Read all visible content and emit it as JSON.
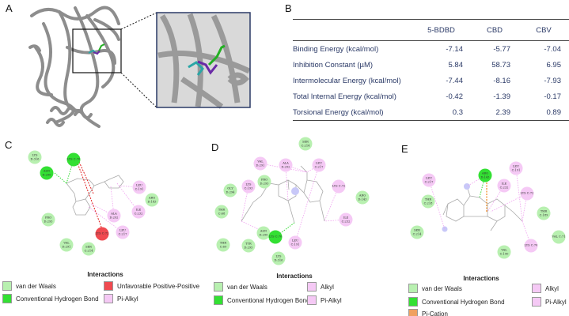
{
  "panel_labels": {
    "a": "A",
    "b": "B",
    "c": "C",
    "d": "D",
    "e": "E"
  },
  "colors": {
    "vdw": "#b8f0b0",
    "hbond": "#33e033",
    "unfavorable": "#f04a50",
    "pi_alkyl": "#f5c9f5",
    "alkyl": "#f5c9f5",
    "pi_cation": "#f0a060",
    "table_text": "#2b3a67",
    "inset_border": "#2b3a67"
  },
  "table": {
    "headers": [
      "",
      "5-BDBD",
      "CBD",
      "CBV"
    ],
    "rows": [
      {
        "label": "Binding Energy (kcal/mol)",
        "values": [
          "-7.14",
          "-5.77",
          "-7.04"
        ]
      },
      {
        "label": "Inhibition Constant (µM)",
        "values": [
          "5.84",
          "58.73",
          "6.95"
        ]
      },
      {
        "label": "Intermolecular Energy (kcal/mol)",
        "values": [
          "-7.44",
          "-8.16",
          "-7.93"
        ]
      },
      {
        "label": "Total Internal Energy (kcal/mol)",
        "values": [
          "-0.42",
          "-1.39",
          "-0.17"
        ]
      },
      {
        "label": "Torsional Energy (kcal/mol)",
        "values": [
          "0.3",
          "2.39",
          "0.89"
        ]
      }
    ]
  },
  "panel_c": {
    "residues": [
      {
        "name": "LYS D:316",
        "type": "vdw"
      },
      {
        "name": "LYS C:70",
        "type": "hbond"
      },
      {
        "name": "ASN D:290",
        "type": "hbond"
      },
      {
        "name": "LEU C:191",
        "type": "pi_alkyl"
      },
      {
        "name": "ARG D:143",
        "type": "vdw"
      },
      {
        "name": "ILE C:232",
        "type": "pi_alkyl"
      },
      {
        "name": "ALA D:292",
        "type": "pi_alkyl"
      },
      {
        "name": "PRO D:293",
        "type": "vdw"
      },
      {
        "name": "LYS C:72",
        "type": "unfavorable"
      },
      {
        "name": "LEU C:217",
        "type": "pi_alkyl"
      },
      {
        "name": "VAL D:291",
        "type": "vdw"
      },
      {
        "name": "SER C:214",
        "type": "vdw"
      }
    ],
    "legend": {
      "title": "Interactions",
      "items": [
        {
          "label": "van der Waals",
          "type": "vdw"
        },
        {
          "label": "Conventional Hydrogen Bond",
          "type": "hbond"
        },
        {
          "label": "Unfavorable Positive-Positive",
          "type": "unfavorable"
        },
        {
          "label": "Pi-Alkyl",
          "type": "pi_alkyl"
        }
      ]
    }
  },
  "panel_d": {
    "residues": [
      {
        "name": "SER C:214",
        "type": "vdw"
      },
      {
        "name": "VAL D:291",
        "type": "pi_alkyl"
      },
      {
        "name": "ALA D:292",
        "type": "pi_alkyl"
      },
      {
        "name": "LEU C:217",
        "type": "pi_alkyl"
      },
      {
        "name": "PRO D:293",
        "type": "vdw"
      },
      {
        "name": "LYS C:193",
        "type": "pi_alkyl"
      },
      {
        "name": "GLY D:294",
        "type": "vdw"
      },
      {
        "name": "LYS C:72",
        "type": "pi_alkyl"
      },
      {
        "name": "ARG D:143",
        "type": "vdw"
      },
      {
        "name": "THR C:68",
        "type": "vdw"
      },
      {
        "name": "ILE C:232",
        "type": "pi_alkyl"
      },
      {
        "name": "ASN D:290",
        "type": "vdw"
      },
      {
        "name": "LYS C:70",
        "type": "hbond"
      },
      {
        "name": "LEU C:191",
        "type": "pi_alkyl"
      },
      {
        "name": "THR C:69",
        "type": "vdw"
      },
      {
        "name": "TYR D:295",
        "type": "vdw"
      },
      {
        "name": "LYS D:316",
        "type": "vdw"
      }
    ],
    "legend": {
      "title": "Interactions",
      "items": [
        {
          "label": "van der Waals",
          "type": "vdw"
        },
        {
          "label": "Conventional Hydrogen Bond",
          "type": "hbond"
        },
        {
          "label": "Alkyl",
          "type": "alkyl"
        },
        {
          "label": "Pi-Alkyl",
          "type": "pi_alkyl"
        }
      ]
    }
  },
  "panel_e": {
    "residues": [
      {
        "name": "LEU C:217",
        "type": "pi_alkyl"
      },
      {
        "name": "ARG D:143",
        "type": "hbond"
      },
      {
        "name": "LEU C:191",
        "type": "pi_alkyl"
      },
      {
        "name": "ILE C:232",
        "type": "pi_alkyl"
      },
      {
        "name": "LYS C:72",
        "type": "pi_alkyl"
      },
      {
        "name": "THR C:218",
        "type": "vdw"
      },
      {
        "name": "THR C:189",
        "type": "vdw"
      },
      {
        "name": "SER C:214",
        "type": "vdw"
      },
      {
        "name": "VAL C:71",
        "type": "vdw"
      },
      {
        "name": "LYS C:70",
        "type": "pi_alkyl"
      },
      {
        "name": "VAL C:190",
        "type": "vdw"
      }
    ],
    "legend": {
      "title": "Interactions",
      "items": [
        {
          "label": "van der Waals",
          "type": "vdw"
        },
        {
          "label": "Conventional Hydrogen Bond",
          "type": "hbond"
        },
        {
          "label": "Pi-Cation",
          "type": "pi_cation"
        },
        {
          "label": "Alkyl",
          "type": "alkyl"
        },
        {
          "label": "Pi-Alkyl",
          "type": "pi_alkyl"
        }
      ]
    }
  }
}
